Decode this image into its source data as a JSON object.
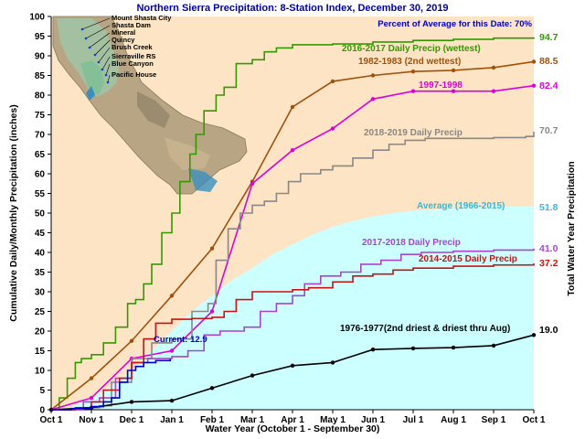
{
  "chart_data": {
    "type": "line",
    "title": "Northern Sierra Precipitation: 8-Station Index, December 30, 2019",
    "xlabel": "Water Year (October 1 - September 30)",
    "ylabel": "Cumulative Daily/Monthly Precipitation (inches)",
    "ylabel_right": "Total Water Year Precipitation",
    "annotation": "Percent of Average for this Date: 70%",
    "current_label": "Current: 12.9",
    "stations": [
      "Mount Shasta City",
      "Shasta Dam",
      "Mineral",
      "Quincy",
      "Brush Creek",
      "Sierraville RS",
      "Blue Canyon",
      "Pacific House"
    ],
    "x_ticks": [
      "Oct 1",
      "Nov 1",
      "Dec 1",
      "Jan 1",
      "Feb 1",
      "Mar 1",
      "Apr 1",
      "May 1",
      "Jun 1",
      "Jul 1",
      "Aug 1",
      "Sep 1",
      "Oct 1"
    ],
    "ylim": [
      0,
      100
    ],
    "y_ticks": [
      0,
      5,
      10,
      15,
      20,
      25,
      30,
      35,
      40,
      45,
      50,
      55,
      60,
      65,
      70,
      75,
      80,
      85,
      90,
      95,
      100
    ],
    "grid": false,
    "colors": {
      "plot_bg": "#fce4c4",
      "average_fill": "#ccffff",
      "average_label": "#33bbdd",
      "annotation": "#0000cc",
      "title": "#0000aa"
    },
    "series": [
      {
        "name": "Average (1966-2015)",
        "label": "Average (1966-2015)",
        "total": "51.8",
        "color": "#33bbdd",
        "style": "area",
        "points": [
          [
            0,
            0
          ],
          [
            0.5,
            0.6
          ],
          [
            1,
            3
          ],
          [
            1.5,
            6
          ],
          [
            2,
            10
          ],
          [
            2.5,
            15
          ],
          [
            3,
            20
          ],
          [
            3.5,
            25
          ],
          [
            4,
            29
          ],
          [
            4.5,
            33
          ],
          [
            5,
            36
          ],
          [
            5.5,
            39.5
          ],
          [
            6,
            42
          ],
          [
            6.5,
            44.5
          ],
          [
            7,
            46.5
          ],
          [
            7.5,
            48
          ],
          [
            8,
            49.2
          ],
          [
            8.5,
            50
          ],
          [
            9,
            50.6
          ],
          [
            10,
            51.2
          ],
          [
            11,
            51.6
          ],
          [
            12,
            51.8
          ]
        ]
      },
      {
        "name": "2016-2017 Daily Precip (wettest)",
        "label": "2016-2017 Daily Precip (wettest)",
        "total": "94.7",
        "color": "#339900",
        "style": "step",
        "points": [
          [
            0,
            0
          ],
          [
            0.2,
            3
          ],
          [
            0.4,
            8
          ],
          [
            0.6,
            12
          ],
          [
            0.75,
            13
          ],
          [
            1,
            14
          ],
          [
            1.3,
            17
          ],
          [
            1.6,
            21
          ],
          [
            1.9,
            27
          ],
          [
            2.1,
            28
          ],
          [
            2.3,
            32
          ],
          [
            2.5,
            37
          ],
          [
            2.75,
            45
          ],
          [
            3,
            50
          ],
          [
            3.2,
            58
          ],
          [
            3.45,
            65
          ],
          [
            3.6,
            70
          ],
          [
            3.8,
            76
          ],
          [
            4.1,
            80
          ],
          [
            4.3,
            82
          ],
          [
            4.6,
            88
          ],
          [
            5,
            89
          ],
          [
            5.3,
            91
          ],
          [
            5.6,
            92
          ],
          [
            6,
            92.8
          ],
          [
            7,
            93
          ],
          [
            8,
            93.5
          ],
          [
            9,
            93.9
          ],
          [
            10,
            94.2
          ],
          [
            11,
            94.5
          ],
          [
            12,
            94.7
          ]
        ]
      },
      {
        "name": "1982-1983 (2nd wettest)",
        "label": "1982-1983 (2nd wettest)",
        "total": "88.5",
        "color": "#a0520a",
        "style": "monthly",
        "points": [
          [
            0,
            0
          ],
          [
            1,
            8
          ],
          [
            2,
            17.5
          ],
          [
            3,
            29
          ],
          [
            4,
            41
          ],
          [
            5,
            58
          ],
          [
            6,
            77
          ],
          [
            7,
            83.5
          ],
          [
            8,
            85
          ],
          [
            9,
            86
          ],
          [
            10,
            86.3
          ],
          [
            11,
            87
          ],
          [
            12,
            88.5
          ]
        ]
      },
      {
        "name": "1997-1998",
        "label": "1997-1998",
        "total": "82.4",
        "color": "#dd00dd",
        "style": "monthly",
        "points": [
          [
            0,
            0
          ],
          [
            1,
            3
          ],
          [
            2,
            13
          ],
          [
            3,
            15
          ],
          [
            4,
            25
          ],
          [
            5,
            57.5
          ],
          [
            6,
            66
          ],
          [
            7,
            71.5
          ],
          [
            8,
            79
          ],
          [
            9,
            81
          ],
          [
            10,
            81
          ],
          [
            11,
            81
          ],
          [
            12,
            82.4
          ]
        ]
      },
      {
        "name": "2018-2019 Daily Precip",
        "label": "2018-2019 Daily Precip",
        "total": "70.7",
        "color": "#888888",
        "style": "step",
        "points": [
          [
            0,
            0
          ],
          [
            0.8,
            0.5
          ],
          [
            1.2,
            1
          ],
          [
            1.5,
            7
          ],
          [
            2,
            13
          ],
          [
            2.5,
            17
          ],
          [
            3,
            18
          ],
          [
            3.5,
            25
          ],
          [
            3.9,
            27
          ],
          [
            4.1,
            38
          ],
          [
            4.4,
            46
          ],
          [
            4.7,
            50
          ],
          [
            5,
            52
          ],
          [
            5.3,
            53
          ],
          [
            5.6,
            55
          ],
          [
            5.9,
            58
          ],
          [
            6.2,
            60
          ],
          [
            6.7,
            61
          ],
          [
            7,
            62
          ],
          [
            7.5,
            64
          ],
          [
            8,
            66
          ],
          [
            8.4,
            67.5
          ],
          [
            8.8,
            68.5
          ],
          [
            9.3,
            69
          ],
          [
            10,
            69
          ],
          [
            11,
            69.2
          ],
          [
            11.8,
            69.5
          ],
          [
            12,
            70.7
          ]
        ]
      },
      {
        "name": "2017-2018 Daily Precip",
        "label": "2017-2018 Daily Precip",
        "total": "41.0",
        "color": "#aa44cc",
        "style": "step",
        "points": [
          [
            0,
            0
          ],
          [
            0.8,
            2
          ],
          [
            1.2,
            3
          ],
          [
            1.6,
            8
          ],
          [
            2,
            12
          ],
          [
            2.4,
            13
          ],
          [
            3,
            13.5
          ],
          [
            3.4,
            15
          ],
          [
            3.8,
            19
          ],
          [
            4.2,
            20
          ],
          [
            4.8,
            21
          ],
          [
            5.2,
            25
          ],
          [
            5.6,
            27
          ],
          [
            6,
            29
          ],
          [
            6.3,
            32
          ],
          [
            6.7,
            34
          ],
          [
            7.2,
            35
          ],
          [
            7.7,
            37
          ],
          [
            8.2,
            38
          ],
          [
            8.7,
            39.5
          ],
          [
            9.2,
            40
          ],
          [
            10,
            40.3
          ],
          [
            11,
            40.6
          ],
          [
            12,
            41
          ]
        ]
      },
      {
        "name": "2014-2015 Daily Precip",
        "label": "2014-2015 Daily Precip",
        "total": "37.2",
        "color": "#cc1111",
        "style": "step",
        "points": [
          [
            0,
            0
          ],
          [
            0.6,
            0.5
          ],
          [
            1,
            2
          ],
          [
            1.3,
            5
          ],
          [
            1.7,
            8
          ],
          [
            2,
            12
          ],
          [
            2.3,
            18
          ],
          [
            2.6,
            22
          ],
          [
            3,
            23
          ],
          [
            3.5,
            23.2
          ],
          [
            4,
            23.5
          ],
          [
            4.3,
            25
          ],
          [
            4.6,
            28
          ],
          [
            5,
            30
          ],
          [
            6,
            30.5
          ],
          [
            6.4,
            31
          ],
          [
            7,
            32.5
          ],
          [
            7.5,
            34
          ],
          [
            8,
            34.5
          ],
          [
            8.5,
            35.5
          ],
          [
            9,
            36
          ],
          [
            10,
            36.5
          ],
          [
            11,
            36.8
          ],
          [
            12,
            37.2
          ]
        ]
      },
      {
        "name": "1976-1977(2nd driest & driest thru Aug)",
        "label": "1976-1977(2nd driest & driest thru Aug)",
        "total": "19.0",
        "color": "#000000",
        "style": "monthly",
        "points": [
          [
            0,
            0
          ],
          [
            1,
            0.5
          ],
          [
            2,
            2
          ],
          [
            3,
            2.3
          ],
          [
            4,
            5.5
          ],
          [
            5,
            8.7
          ],
          [
            6,
            11.2
          ],
          [
            7,
            12
          ],
          [
            8,
            15.3
          ],
          [
            9,
            15.6
          ],
          [
            10,
            15.8
          ],
          [
            11,
            16.3
          ],
          [
            12,
            19
          ]
        ]
      },
      {
        "name": "Current",
        "label": "",
        "total": "",
        "color": "#0000cc",
        "style": "step",
        "points": [
          [
            0,
            0
          ],
          [
            0.5,
            0.3
          ],
          [
            1,
            0.8
          ],
          [
            1.3,
            2
          ],
          [
            1.5,
            3
          ],
          [
            1.7,
            7
          ],
          [
            1.9,
            10
          ],
          [
            2.1,
            11
          ],
          [
            2.3,
            12
          ],
          [
            2.6,
            12.5
          ],
          [
            2.96,
            12.9
          ]
        ]
      }
    ]
  }
}
